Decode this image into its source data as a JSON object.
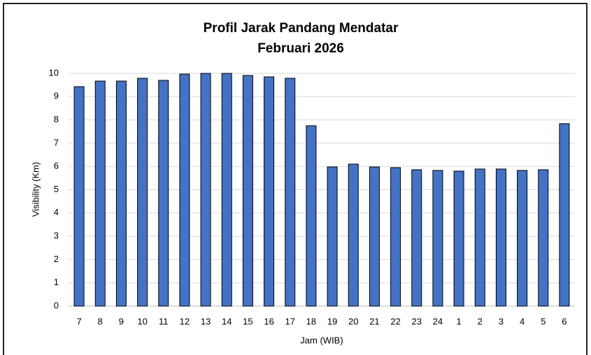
{
  "chart_data": {
    "type": "bar",
    "title": "Profil Jarak Pandang Mendatar",
    "subtitle": "Februari 2026",
    "x_label": "Jam (WIB)",
    "y_label": "Visibility (Km)",
    "categories": [
      "7",
      "8",
      "9",
      "10",
      "11",
      "12",
      "13",
      "14",
      "15",
      "16",
      "17",
      "18",
      "19",
      "20",
      "21",
      "22",
      "23",
      "24",
      "1",
      "2",
      "3",
      "4",
      "5",
      "6"
    ],
    "values": [
      9.43,
      9.67,
      9.67,
      9.79,
      9.7,
      9.97,
      10,
      10,
      9.91,
      9.85,
      9.79,
      7.75,
      5.98,
      6.1,
      5.98,
      5.95,
      5.86,
      5.83,
      5.8,
      5.89,
      5.89,
      5.83,
      5.86,
      7.84
    ],
    "color": "#4472c4",
    "ylim": [
      0,
      10
    ],
    "yticks": [
      0,
      1,
      2,
      3,
      4,
      5,
      6,
      7,
      8,
      9,
      10
    ],
    "grid": true
  }
}
